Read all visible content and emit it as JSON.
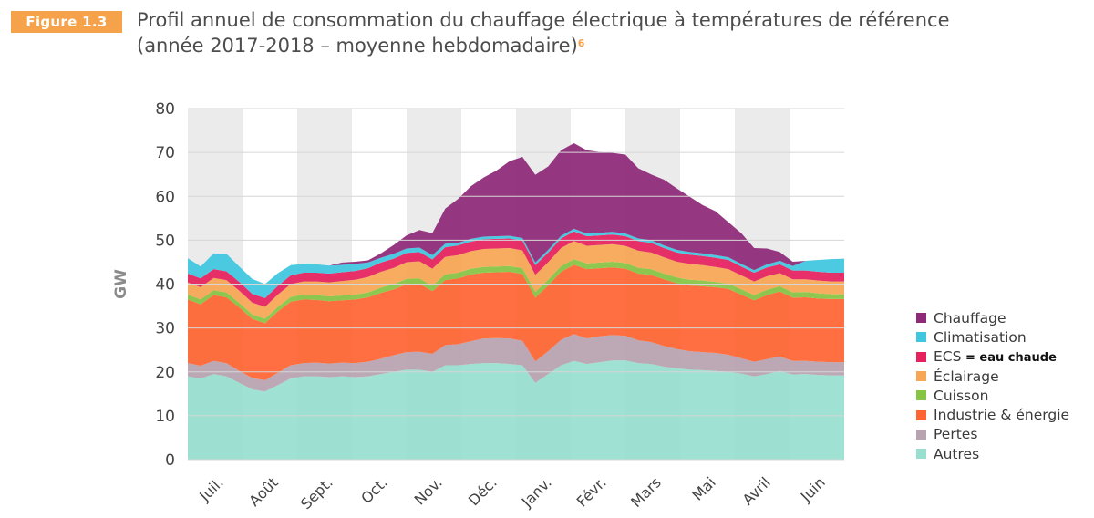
{
  "header": {
    "badge": "Figure 1.3",
    "title_line1": "Profil annuel de consommation du chauffage électrique à températures de référence",
    "title_line2": "(année 2017-2018 – moyenne hebdomadaire)",
    "footnote": "6"
  },
  "colors": {
    "Chauffage": "#8e2a78",
    "Climatisation": "#3fc7e0",
    "ECS": "#e6215e",
    "Eclairage": "#f7a654",
    "Cuisson": "#86c443",
    "Industrie": "#ff6533",
    "Pertes": "#b8a3b0",
    "Autres": "#98dfcf",
    "band": "#ebebeb"
  },
  "chart_data": {
    "type": "area",
    "stacked": true,
    "ylabel": "GW",
    "ylim": [
      0,
      80
    ],
    "yticks": [
      0,
      10,
      20,
      30,
      40,
      50,
      60,
      70,
      80
    ],
    "weeks": 52,
    "grid": "alternating monthly bands",
    "legend_position": "right",
    "months": [
      "Juil.",
      "Août",
      "Sept.",
      "Oct.",
      "Nov.",
      "Déc.",
      "Janv.",
      "Févr.",
      "Mars",
      "Mai",
      "Avril",
      "Juin"
    ],
    "series": [
      {
        "name": "Autres",
        "values": [
          19,
          18.5,
          19.5,
          19,
          17.5,
          16,
          15.5,
          17,
          18.5,
          19,
          19,
          18.8,
          19,
          18.8,
          19,
          19.5,
          20,
          20.5,
          20.5,
          20,
          21.5,
          21.5,
          21.8,
          22,
          22,
          21.8,
          21.5,
          17.5,
          19.5,
          21.5,
          22.5,
          21.8,
          22.2,
          22.6,
          22.6,
          22,
          21.8,
          21.2,
          20.8,
          20.5,
          20.4,
          20.2,
          20,
          19.6,
          19,
          19.5,
          20.2,
          19.4,
          19.5,
          19.3,
          19.2,
          19.2
        ]
      },
      {
        "name": "Pertes",
        "values": [
          3,
          2.9,
          3,
          3,
          2.7,
          2.6,
          2.6,
          2.8,
          3,
          3,
          3.1,
          3.1,
          3.1,
          3.2,
          3.3,
          3.5,
          3.8,
          4,
          4.1,
          4.1,
          4.6,
          4.8,
          5.2,
          5.6,
          5.7,
          5.8,
          5.6,
          4.9,
          5.2,
          5.8,
          6.1,
          5.8,
          5.9,
          5.8,
          5.6,
          5.2,
          5,
          4.7,
          4.4,
          4.2,
          4.1,
          4.1,
          3.9,
          3.5,
          3.3,
          3.4,
          3.3,
          3.1,
          3,
          3,
          3,
          3
        ]
      },
      {
        "name": "Industrie & énergie",
        "values": [
          14.5,
          14,
          15,
          15,
          14.5,
          13.5,
          13,
          14,
          14.5,
          14.5,
          14.3,
          14.2,
          14.2,
          14.5,
          14.7,
          15,
          15,
          15.5,
          15.5,
          14.3,
          14.8,
          15,
          15.2,
          15,
          15,
          15.2,
          15.2,
          14.5,
          15,
          15.5,
          15.8,
          15.8,
          15.5,
          15.4,
          15.3,
          15.2,
          15.3,
          15.2,
          15,
          15,
          15,
          15,
          15,
          14.5,
          14,
          14.6,
          14.8,
          14.4,
          14.5,
          14.4,
          14.4,
          14.4
        ]
      },
      {
        "name": "Cuisson",
        "values": [
          1.1,
          1.1,
          1.1,
          1.1,
          1,
          1,
          1,
          1,
          1.1,
          1.1,
          1.1,
          1.1,
          1.1,
          1.1,
          1.1,
          1.2,
          1.2,
          1.2,
          1.2,
          1.2,
          1.3,
          1.3,
          1.3,
          1.3,
          1.3,
          1.3,
          1.3,
          1.3,
          1.3,
          1.3,
          1.3,
          1.3,
          1.3,
          1.3,
          1.3,
          1.3,
          1.3,
          1.3,
          1.3,
          1.3,
          1.3,
          1.2,
          1.2,
          1.2,
          1.2,
          1.2,
          1.2,
          1.2,
          1.2,
          1.2,
          1.1,
          1.1
        ]
      },
      {
        "name": "Éclairage",
        "values": [
          2.8,
          2.8,
          2.8,
          2.8,
          2.8,
          2.7,
          2.7,
          2.8,
          2.9,
          3,
          3.1,
          3.2,
          3.3,
          3.4,
          3.5,
          3.6,
          3.7,
          3.8,
          3.9,
          3.9,
          4,
          4,
          4,
          4.1,
          4.1,
          4.1,
          4.1,
          3.9,
          4,
          4.1,
          4.1,
          4,
          4,
          4,
          3.9,
          3.9,
          3.8,
          3.7,
          3.6,
          3.6,
          3.5,
          3.4,
          3.3,
          3.2,
          3.1,
          3.1,
          3,
          3,
          2.9,
          2.9,
          2.9,
          2.9
        ]
      },
      {
        "name": "ECS",
        "values": [
          2,
          2,
          2,
          2,
          2,
          2,
          2,
          2,
          2,
          2,
          2,
          2,
          2,
          2,
          2,
          2.1,
          2.1,
          2.1,
          2.1,
          2.1,
          2.2,
          2.2,
          2.2,
          2.2,
          2.2,
          2.2,
          2.2,
          2.2,
          2.2,
          2.2,
          2.2,
          2.2,
          2.2,
          2.2,
          2.2,
          2.2,
          2.2,
          2.1,
          2.1,
          2.1,
          2.1,
          2.1,
          2.1,
          2,
          2,
          2,
          2,
          2,
          2,
          2,
          2,
          2
        ]
      },
      {
        "name": "Climatisation",
        "values": [
          3.5,
          2.7,
          3.6,
          4,
          3.5,
          3.4,
          3.2,
          2.9,
          2.3,
          2,
          1.9,
          1.8,
          1.7,
          1.6,
          1.3,
          1.1,
          1.1,
          1,
          1,
          1,
          0.8,
          0.6,
          0.6,
          0.6,
          0.6,
          0.6,
          0.6,
          0.6,
          0.6,
          0.6,
          0.6,
          0.6,
          0.6,
          0.6,
          0.6,
          0.6,
          0.6,
          0.6,
          0.6,
          0.6,
          0.6,
          0.6,
          0.6,
          0.6,
          0.6,
          0.7,
          0.8,
          1,
          2.2,
          2.7,
          3.1,
          3.2
        ]
      },
      {
        "name": "Chauffage",
        "values": [
          0,
          0,
          0,
          0,
          0,
          0,
          0,
          0,
          0,
          0,
          0,
          0,
          0.5,
          0.5,
          0.5,
          1,
          2,
          3,
          4,
          5,
          8,
          10,
          12,
          13.5,
          15,
          17,
          18.5,
          20,
          19,
          19.5,
          19.5,
          19,
          18.4,
          18,
          18,
          16,
          15,
          15,
          14,
          12.6,
          11,
          10,
          8,
          7,
          5,
          3.6,
          2,
          1,
          0,
          0,
          0,
          0
        ]
      }
    ]
  },
  "legend": [
    {
      "label": "Chauffage",
      "color_key": "Chauffage",
      "extra": ""
    },
    {
      "label": "Climatisation",
      "color_key": "Climatisation",
      "extra": ""
    },
    {
      "label": "ECS",
      "color_key": "ECS",
      "extra": "= eau chaude"
    },
    {
      "label": "Éclairage",
      "color_key": "Eclairage",
      "extra": ""
    },
    {
      "label": "Cuisson",
      "color_key": "Cuisson",
      "extra": ""
    },
    {
      "label": "Industrie & énergie",
      "color_key": "Industrie",
      "extra": ""
    },
    {
      "label": "Pertes",
      "color_key": "Pertes",
      "extra": ""
    },
    {
      "label": "Autres",
      "color_key": "Autres",
      "extra": ""
    }
  ]
}
